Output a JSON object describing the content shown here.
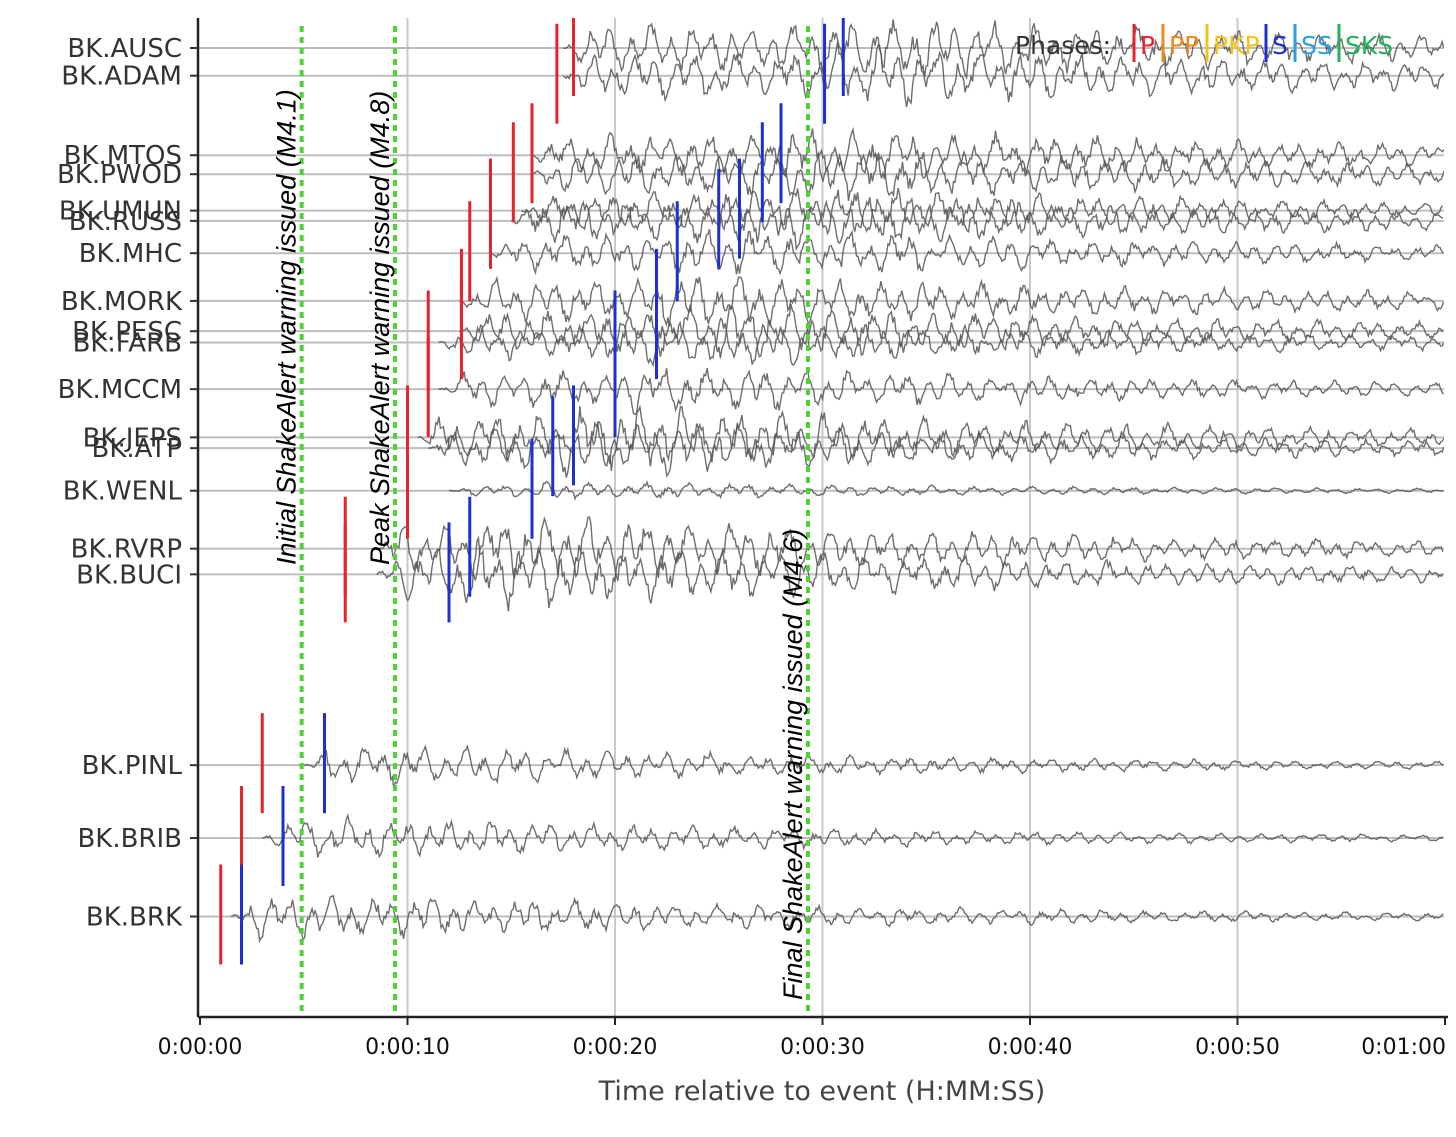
{
  "chart_data": {
    "type": "line",
    "xlabel": "Time relative to event (H:MM:SS)",
    "x_range_seconds": [
      0,
      60
    ],
    "grid": true,
    "x_ticks": [
      {
        "t": 0,
        "label": "0:00:00"
      },
      {
        "t": 10,
        "label": "0:00:10"
      },
      {
        "t": 20,
        "label": "0:00:20"
      },
      {
        "t": 30,
        "label": "0:00:30"
      },
      {
        "t": 40,
        "label": "0:00:40"
      },
      {
        "t": 50,
        "label": "0:00:50"
      },
      {
        "t": 60,
        "label": "0:01:00"
      }
    ],
    "legend": {
      "title": "Phases:",
      "placement": "top-right",
      "items": [
        {
          "name": "P",
          "color": "#e8242b"
        },
        {
          "name": "PP",
          "color": "#ef8a1e"
        },
        {
          "name": "PKP",
          "color": "#f3c317"
        },
        {
          "name": "S",
          "color": "#1f2fd1"
        },
        {
          "name": "SS",
          "color": "#2aa0e0"
        },
        {
          "name": "SKS",
          "color": "#22b05a"
        }
      ]
    },
    "stations": [
      {
        "name": "BK.AUSC",
        "offset": 1.0,
        "start_t": 17.5,
        "amp": 0.9,
        "p": 18.0,
        "s": 31.0
      },
      {
        "name": "BK.ADAM",
        "offset": 1.54,
        "start_t": 17.5,
        "amp": 0.9,
        "p": 17.2,
        "s": 30.1
      },
      {
        "name": "BK.MTOS",
        "offset": 3.09,
        "start_t": 16.0,
        "amp": 0.8,
        "p": 16.0,
        "s": 28.0
      },
      {
        "name": "BK.PWOD",
        "offset": 3.46,
        "start_t": 16.0,
        "amp": 0.8,
        "p": 15.1,
        "s": 27.1
      },
      {
        "name": "BK.UMUN",
        "offset": 4.17,
        "start_t": 15.5,
        "amp": 0.7,
        "p": 14.0,
        "s": 26.0
      },
      {
        "name": "BK.RUSS",
        "offset": 4.37,
        "start_t": 15.0,
        "amp": 0.8,
        "p": 14.0,
        "s": 25.0
      },
      {
        "name": "BK.MHC",
        "offset": 5.0,
        "start_t": 14.0,
        "amp": 0.7,
        "p": 13.0,
        "s": 23.0
      },
      {
        "name": "BK.MORK",
        "offset": 5.93,
        "start_t": 12.5,
        "amp": 0.8,
        "p": 12.6,
        "s": 22.0
      },
      {
        "name": "BK.PESC",
        "offset": 6.52,
        "start_t": 12.5,
        "amp": 0.8,
        "p": 12.6,
        "s": 22.0
      },
      {
        "name": "BK.FARB",
        "offset": 6.74,
        "start_t": 11.5,
        "amp": 0.7,
        "p": 11.0,
        "s": 20.0
      },
      {
        "name": "BK.MCCM",
        "offset": 7.65,
        "start_t": 11.5,
        "amp": 0.7,
        "p": 11.0,
        "s": 20.0
      },
      {
        "name": "BK.JEPS",
        "offset": 8.59,
        "start_t": 10.5,
        "amp": 0.9,
        "p": 10.0,
        "s": 18.0
      },
      {
        "name": "BK.ATP",
        "offset": 8.8,
        "start_t": 11.0,
        "amp": 0.8,
        "p": 10.0,
        "s": 17.0
      },
      {
        "name": "BK.WENL",
        "offset": 9.63,
        "start_t": 12.0,
        "amp": 0.25,
        "p": 10.0,
        "s": 16.0
      },
      {
        "name": "BK.RVRP",
        "offset": 10.76,
        "start_t": 8.5,
        "amp": 1.0,
        "p": 7.0,
        "s": 13.0
      },
      {
        "name": "BK.BUCI",
        "offset": 11.26,
        "start_t": 8.5,
        "amp": 1.0,
        "p": 7.0,
        "s": 12.0
      },
      {
        "name": "BK.PINL",
        "offset": 14.98,
        "start_t": 5.0,
        "amp": 0.6,
        "p": 3.0,
        "s": 6.0
      },
      {
        "name": "BK.BRIB",
        "offset": 16.4,
        "start_t": 3.0,
        "amp": 0.6,
        "p": 2.0,
        "s": 4.0
      },
      {
        "name": "BK.BRK",
        "offset": 17.93,
        "start_t": 1.5,
        "amp": 0.7,
        "p": 1.0,
        "s": 2.0
      }
    ],
    "annotations": [
      {
        "t": 4.9,
        "text": "Initial ShakeAlert warning issued (M4.1)",
        "color": "#4ed236"
      },
      {
        "t": 9.4,
        "text": "Peak ShakeAlert warning issued (M4.8)",
        "color": "#4ed236"
      },
      {
        "t": 29.3,
        "text": "Final ShakeAlert warning issued (M4.6)",
        "color": "#4ed236"
      }
    ]
  }
}
